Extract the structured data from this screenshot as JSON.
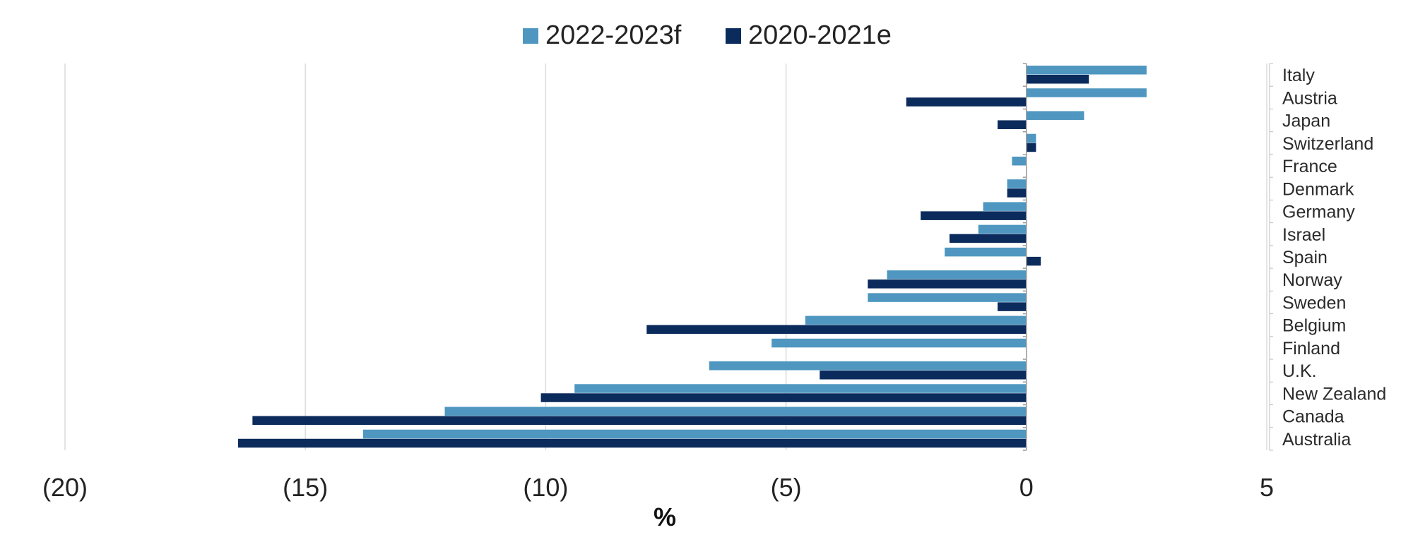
{
  "chart_data": {
    "type": "bar",
    "orientation": "horizontal",
    "title": "",
    "xlabel": "%",
    "ylabel": "",
    "xlim": [
      -20,
      5
    ],
    "x_ticks": [
      -20,
      -15,
      -10,
      -5,
      0,
      5
    ],
    "x_tick_labels": [
      "(20)",
      "(15)",
      "(10)",
      "(5)",
      "0",
      "5"
    ],
    "grid": "vertical",
    "legend_position": "top-center",
    "categories": [
      "Italy",
      "Austria",
      "Japan",
      "Switzerland",
      "France",
      "Denmark",
      "Germany",
      "Israel",
      "Spain",
      "Norway",
      "Sweden",
      "Belgium",
      "Finland",
      "U.K.",
      "New Zealand",
      "Canada",
      "Australia"
    ],
    "series": [
      {
        "name": "2022-2023f",
        "color": "#4f97c0",
        "values": [
          2.5,
          2.5,
          1.2,
          0.2,
          -0.3,
          -0.4,
          -0.9,
          -1.0,
          -1.7,
          -2.9,
          -3.3,
          -4.6,
          -5.3,
          -6.6,
          -9.4,
          -12.1,
          -13.8
        ]
      },
      {
        "name": "2020-2021e",
        "color": "#0b2b5c",
        "values": [
          1.3,
          -2.5,
          -0.6,
          0.2,
          0.0,
          -0.4,
          -2.2,
          -1.6,
          0.3,
          -3.3,
          -0.6,
          -7.9,
          0.0,
          -4.3,
          -10.1,
          -16.1,
          -16.4
        ]
      }
    ]
  }
}
